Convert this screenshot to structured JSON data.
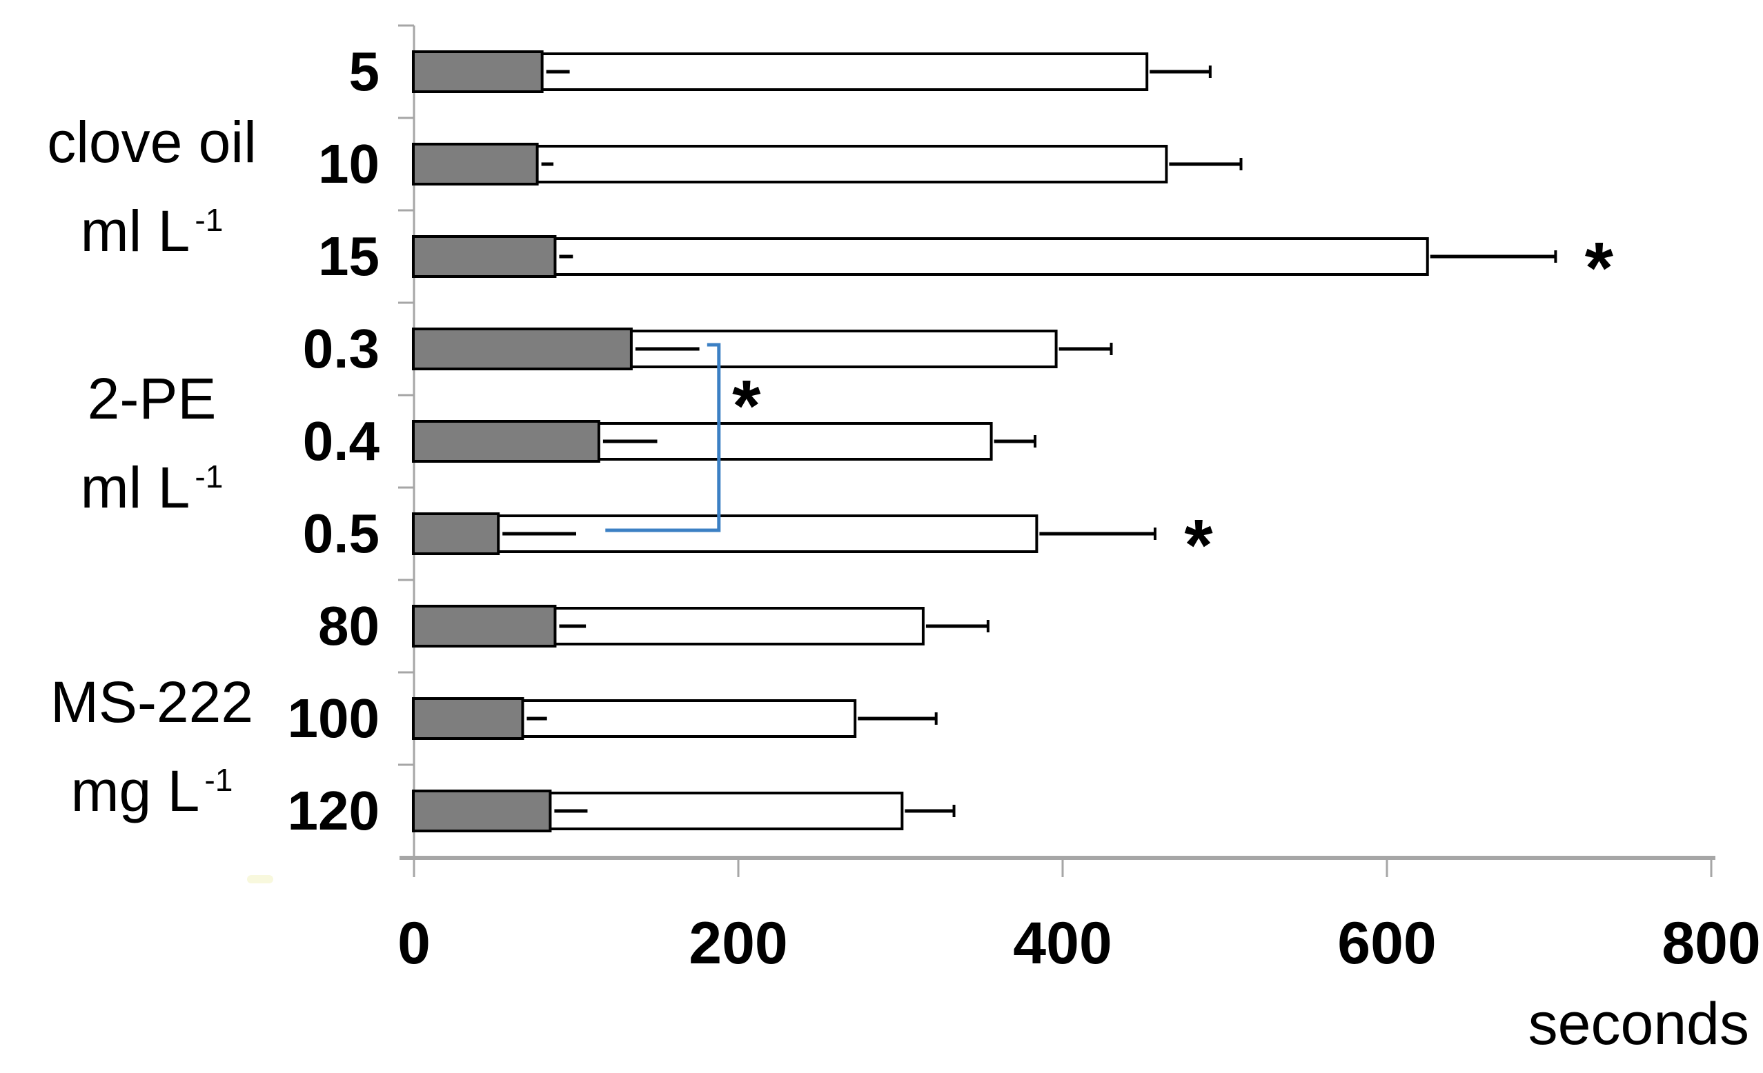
{
  "chart_data": {
    "type": "bar",
    "orientation": "horizontal",
    "title": "",
    "xlabel": "seconds",
    "xlim": [
      0,
      800
    ],
    "x_ticks": [
      "0",
      "200",
      "400",
      "600",
      "800"
    ],
    "x_tick_values": [
      0,
      200,
      400,
      600,
      800
    ],
    "grid": false,
    "legend_position": "none",
    "bar_series": [
      {
        "key": "gray",
        "appearance": "solid gray bar",
        "fill": "#7e7e7e"
      },
      {
        "key": "white",
        "appearance": "open white bar",
        "fill": "#ffffff"
      }
    ],
    "categories": [
      "5",
      "10",
      "15",
      "0.3",
      "0.4",
      "0.5",
      "80",
      "100",
      "120"
    ],
    "groups": [
      {
        "label": "clove oil",
        "unit_base": "ml L",
        "unit_sup": "-1",
        "rows": [
          {
            "category": "5",
            "gray": 79,
            "gray_sd": 17,
            "white": 452,
            "white_sd": 39,
            "asterisk": false
          },
          {
            "category": "10",
            "gray": 76,
            "gray_sd": 10,
            "white": 464,
            "white_sd": 46,
            "asterisk": false
          },
          {
            "category": "15",
            "gray": 87,
            "gray_sd": 11,
            "white": 625,
            "white_sd": 79,
            "asterisk": true
          }
        ]
      },
      {
        "label": "2-PE",
        "unit_base": "ml L",
        "unit_sup": "-1",
        "rows": [
          {
            "category": "0.3",
            "gray": 134,
            "gray_sd": 42,
            "white": 396,
            "white_sd": 34,
            "asterisk": false
          },
          {
            "category": "0.4",
            "gray": 114,
            "gray_sd": 36,
            "white": 356,
            "white_sd": 27,
            "asterisk": false
          },
          {
            "category": "0.5",
            "gray": 52,
            "gray_sd": 48,
            "white": 384,
            "white_sd": 73,
            "asterisk": true
          }
        ]
      },
      {
        "label": "MS-222",
        "unit_base": "mg L",
        "unit_sup": "-1",
        "rows": [
          {
            "category": "80",
            "gray": 87,
            "gray_sd": 19,
            "white": 314,
            "white_sd": 40,
            "asterisk": false
          },
          {
            "category": "100",
            "gray": 67,
            "gray_sd": 15,
            "white": 272,
            "white_sd": 50,
            "asterisk": false
          },
          {
            "category": "120",
            "gray": 84,
            "gray_sd": 23,
            "white": 301,
            "white_sd": 32,
            "asterisk": false
          }
        ]
      }
    ],
    "significance": {
      "asterisk_symbol": "*",
      "row_asterisk_categories": [
        "15",
        "0.5"
      ],
      "bracket": {
        "color": "#3c80c4",
        "from_category": "0.3",
        "to_category": "0.5",
        "stem_x_seconds": 188,
        "foot_x_seconds": 118,
        "label": "*"
      }
    },
    "colors": {
      "gray_bar": "#7e7e7e",
      "bar_border": "#000000",
      "whisker": "#000000",
      "axis": "#a6a6a6",
      "text": "#000000",
      "bracket_blue": "#3c80c4",
      "background": "#ffffff"
    }
  }
}
